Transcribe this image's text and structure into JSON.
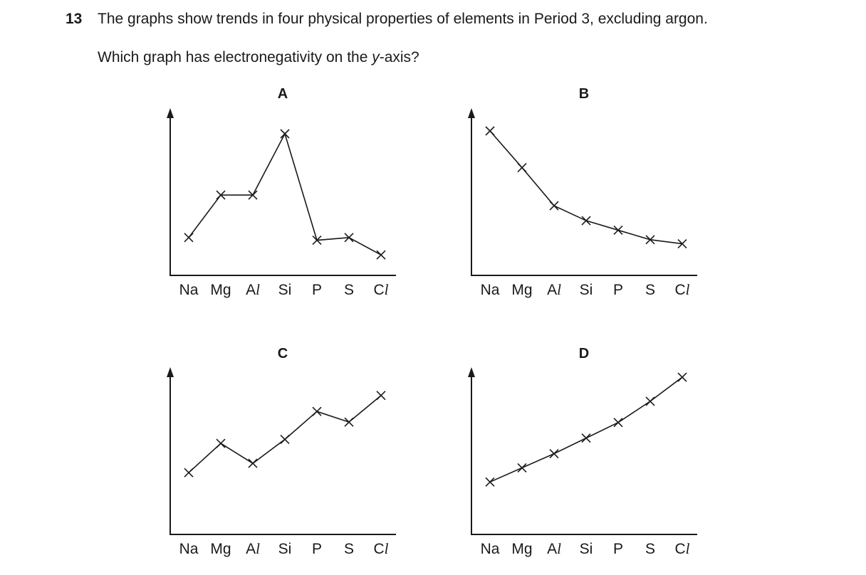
{
  "question": {
    "number": "13",
    "text": "The graphs show trends in four physical properties of elements in Period 3, excluding argon.",
    "prompt_before": "Which graph has electronegativity on the ",
    "prompt_var": "y",
    "prompt_after": "-axis?"
  },
  "chart_data": [
    {
      "type": "line",
      "title": "A",
      "categories": [
        "Na",
        "Mg",
        "Al",
        "Si",
        "P",
        "S",
        "Cl"
      ],
      "tick_labels": [
        {
          "main": "Na",
          "italic": ""
        },
        {
          "main": "Mg",
          "italic": ""
        },
        {
          "main": "A",
          "italic": "l"
        },
        {
          "main": "Si",
          "italic": ""
        },
        {
          "main": "P",
          "italic": ""
        },
        {
          "main": "S",
          "italic": ""
        },
        {
          "main": "C",
          "italic": "l"
        }
      ],
      "values": [
        0.22,
        0.54,
        0.54,
        1.0,
        0.2,
        0.22,
        0.09
      ],
      "marker": "x",
      "ylim": [
        0,
        1.06
      ],
      "grid": false
    },
    {
      "type": "line",
      "title": "B",
      "categories": [
        "Na",
        "Mg",
        "Al",
        "Si",
        "P",
        "S",
        "Cl"
      ],
      "tick_labels": [
        {
          "main": "Na",
          "italic": ""
        },
        {
          "main": "Mg",
          "italic": ""
        },
        {
          "main": "A",
          "italic": "l"
        },
        {
          "main": "Si",
          "italic": ""
        },
        {
          "main": "P",
          "italic": ""
        },
        {
          "main": "S",
          "italic": ""
        },
        {
          "main": "C",
          "italic": "l"
        }
      ],
      "values": [
        1.0,
        0.73,
        0.45,
        0.34,
        0.27,
        0.2,
        0.17
      ],
      "marker": "x",
      "ylim": [
        0,
        1.06
      ],
      "grid": false
    },
    {
      "type": "line",
      "title": "C",
      "categories": [
        "Na",
        "Mg",
        "Al",
        "Si",
        "P",
        "S",
        "Cl"
      ],
      "tick_labels": [
        {
          "main": "Na",
          "italic": ""
        },
        {
          "main": "Mg",
          "italic": ""
        },
        {
          "main": "A",
          "italic": "l"
        },
        {
          "main": "Si",
          "italic": ""
        },
        {
          "main": "P",
          "italic": ""
        },
        {
          "main": "S",
          "italic": ""
        },
        {
          "main": "C",
          "italic": "l"
        }
      ],
      "values": [
        0.4,
        0.62,
        0.47,
        0.65,
        0.86,
        0.78,
        0.98
      ],
      "marker": "x",
      "ylim": [
        0,
        1.06
      ],
      "grid": false
    },
    {
      "type": "line",
      "title": "D",
      "categories": [
        "Na",
        "Mg",
        "Al",
        "Si",
        "P",
        "S",
        "Cl"
      ],
      "tick_labels": [
        {
          "main": "Na",
          "italic": ""
        },
        {
          "main": "Mg",
          "italic": ""
        },
        {
          "main": "A",
          "italic": "l"
        },
        {
          "main": "Si",
          "italic": ""
        },
        {
          "main": "P",
          "italic": ""
        },
        {
          "main": "S",
          "italic": ""
        },
        {
          "main": "C",
          "italic": "l"
        }
      ],
      "values": [
        0.31,
        0.41,
        0.51,
        0.62,
        0.73,
        0.88,
        1.05
      ],
      "marker": "x",
      "ylim": [
        0,
        1.06
      ],
      "grid": false
    }
  ]
}
